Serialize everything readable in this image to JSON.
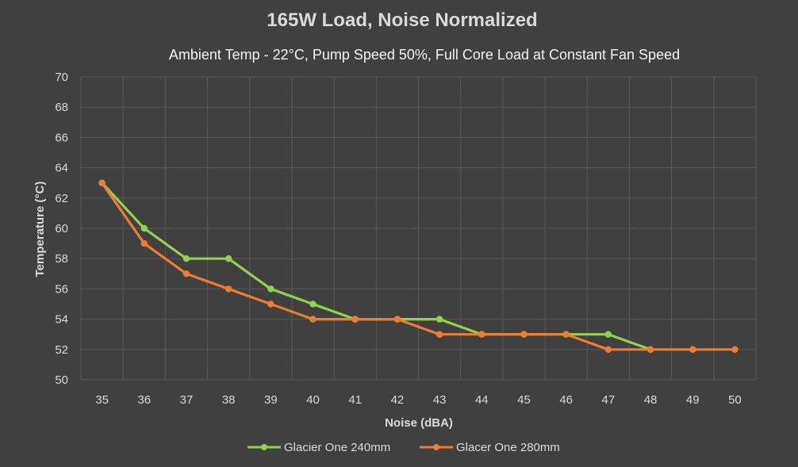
{
  "chart_data": {
    "type": "line",
    "title": "165W Load, Noise Normalized",
    "subtitle": "Ambient Temp - 22°C, Pump Speed 50%, Full Core Load at Constant Fan Speed",
    "xlabel": "Noise (dBA)",
    "ylabel": "Temperature (°C)",
    "x": [
      35,
      36,
      37,
      38,
      39,
      40,
      41,
      42,
      43,
      44,
      45,
      46,
      47,
      48,
      49,
      50
    ],
    "ylim": [
      50,
      70
    ],
    "yticks": [
      50,
      52,
      54,
      56,
      58,
      60,
      62,
      64,
      66,
      68,
      70
    ],
    "grid": true,
    "legend_position": "bottom",
    "series": [
      {
        "name": "Glacier One 240mm",
        "color": "#92d050",
        "values": [
          63,
          60,
          58,
          58,
          56,
          55,
          54,
          54,
          54,
          53,
          53,
          53,
          53,
          52,
          null,
          null
        ]
      },
      {
        "name": "Glacer One 280mm",
        "color": "#ed7d31",
        "values": [
          63,
          59,
          57,
          56,
          55,
          54,
          54,
          54,
          53,
          53,
          53,
          53,
          52,
          52,
          52,
          52
        ]
      }
    ]
  }
}
